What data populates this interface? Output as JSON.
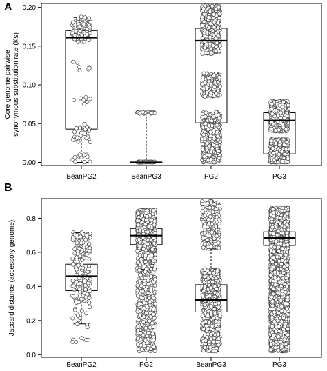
{
  "chart_data": [
    {
      "panel": "A",
      "type": "boxplot",
      "ylabel_lines": [
        "Core genome pairwise",
        "synonymous substitution rate (Ks)"
      ],
      "ylim": [
        -0.004,
        0.205
      ],
      "yticks": [
        0.0,
        0.05,
        0.1,
        0.15,
        0.2
      ],
      "ytick_labels": [
        "0.00",
        "0.05",
        "0.10",
        "0.15",
        "0.20"
      ],
      "categories": [
        "BeanPG2",
        "BeanPG3",
        "PG2",
        "PG3"
      ],
      "boxes": [
        {
          "min": 0.0,
          "q1": 0.043,
          "median": 0.161,
          "q3": 0.17,
          "max": 0.187,
          "points": 170,
          "clusters": [
            [
              0.155,
              0.188,
              0.62
            ],
            [
              0.118,
              0.13,
              0.04
            ],
            [
              0.075,
              0.085,
              0.05
            ],
            [
              0.025,
              0.05,
              0.2
            ],
            [
              0.0,
              0.01,
              0.09
            ]
          ]
        },
        {
          "min": 0.0,
          "q1": 0.0,
          "median": 0.0,
          "q3": 0.0,
          "max": 0.064,
          "points": 90,
          "clusters": [
            [
              0.0,
              0.001,
              0.7
            ],
            [
              0.063,
              0.065,
              0.3
            ]
          ]
        },
        {
          "min": 0.0,
          "q1": 0.051,
          "median": 0.157,
          "q3": 0.173,
          "max": 0.202,
          "points": 1400,
          "clusters": [
            [
              0.14,
              0.202,
              0.4
            ],
            [
              0.085,
              0.115,
              0.12
            ],
            [
              0.05,
              0.065,
              0.06
            ],
            [
              0.0,
              0.05,
              0.42
            ]
          ]
        },
        {
          "min": 0.0,
          "q1": 0.011,
          "median": 0.054,
          "q3": 0.064,
          "max": 0.079,
          "points": 1200,
          "clusters": [
            [
              0.04,
              0.079,
              0.55
            ],
            [
              0.0,
              0.03,
              0.45
            ]
          ]
        }
      ]
    },
    {
      "panel": "B",
      "type": "boxplot",
      "ylabel_lines": [
        "Jaccard distance (accessory genome)"
      ],
      "ylim": [
        -0.015,
        0.915
      ],
      "yticks": [
        0.0,
        0.2,
        0.4,
        0.6,
        0.8
      ],
      "ytick_labels": [
        "0.0",
        "0.2",
        "0.4",
        "0.6",
        "0.8"
      ],
      "categories": [
        "BeanPG2",
        "PG2",
        "BeanPG3",
        "PG3"
      ],
      "boxes": [
        {
          "min": 0.18,
          "q1": 0.375,
          "median": 0.46,
          "q3": 0.53,
          "max": 0.715,
          "points": 180,
          "clusters": [
            [
              0.3,
              0.72,
              0.88
            ],
            [
              0.15,
              0.3,
              0.08
            ],
            [
              0.07,
              0.1,
              0.04
            ]
          ]
        },
        {
          "min": 0.5,
          "q1": 0.645,
          "median": 0.698,
          "q3": 0.74,
          "max": 0.85,
          "points": 1400,
          "clusters": [
            [
              0.6,
              0.85,
              0.7
            ],
            [
              0.02,
              0.6,
              0.3
            ]
          ]
        },
        {
          "min": 0.02,
          "q1": 0.25,
          "median": 0.32,
          "q3": 0.41,
          "max": 0.62,
          "points": 900,
          "clusters": [
            [
              0.2,
              0.5,
              0.6
            ],
            [
              0.02,
              0.2,
              0.2
            ],
            [
              0.62,
              0.9,
              0.2
            ]
          ]
        },
        {
          "min": 0.51,
          "q1": 0.64,
          "median": 0.685,
          "q3": 0.72,
          "max": 0.85,
          "points": 2800,
          "clusters": [
            [
              0.02,
              0.86,
              1.0
            ]
          ]
        }
      ]
    }
  ]
}
